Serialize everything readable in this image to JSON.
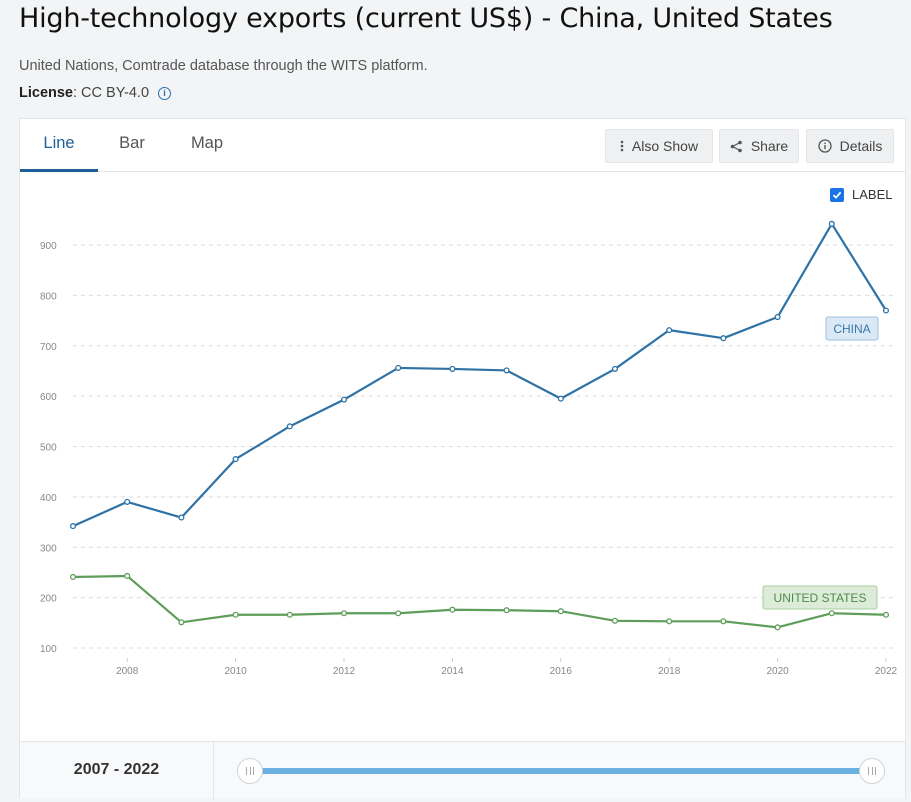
{
  "header": {
    "title": "High-technology exports (current US$) - China, United States",
    "source": "United Nations, Comtrade database through the WITS platform.",
    "license_label": "License",
    "license_value": " : CC BY-4.0"
  },
  "tabs": [
    {
      "label": "Line",
      "active": true
    },
    {
      "label": "Bar",
      "active": false
    },
    {
      "label": "Map",
      "active": false
    }
  ],
  "toolbar": {
    "also_show": "Also Show",
    "share": "Share",
    "details": "Details"
  },
  "label_toggle": {
    "text": "LABEL",
    "checked": true
  },
  "chart_data": {
    "type": "line",
    "title": "",
    "xlabel": "",
    "ylabel": "",
    "x": [
      2007,
      2008,
      2009,
      2010,
      2011,
      2012,
      2013,
      2014,
      2015,
      2016,
      2017,
      2018,
      2019,
      2020,
      2021,
      2022
    ],
    "x_ticks": [
      "2008",
      "2010",
      "2012",
      "2014",
      "2016",
      "2018",
      "2020",
      "2022"
    ],
    "y_ticks": [
      "100",
      "200",
      "300",
      "400",
      "500",
      "600",
      "700",
      "800",
      "900"
    ],
    "ylim": [
      100,
      900
    ],
    "grid": true,
    "series": [
      {
        "name": "CHINA",
        "color": "#2e72a6",
        "values": [
          342,
          390,
          359,
          475,
          540,
          593,
          656,
          654,
          651,
          595,
          654,
          731,
          715,
          757,
          942,
          770
        ]
      },
      {
        "name": "UNITED STATES",
        "color": "#5e9e5a",
        "values": [
          241,
          243,
          151,
          166,
          166,
          169,
          169,
          176,
          175,
          173,
          154,
          153,
          153,
          141,
          169,
          166
        ]
      }
    ]
  },
  "range": {
    "label": "2007 - 2022"
  }
}
